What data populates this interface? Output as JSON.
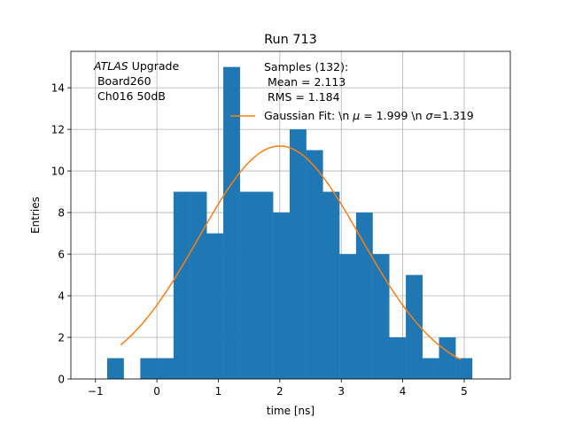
{
  "chart_data": {
    "type": "bar",
    "title": "Run 713",
    "xlabel": "time [ns]",
    "ylabel": "Entries",
    "xlim": [
      -1.4,
      5.75
    ],
    "ylim": [
      0,
      15.75
    ],
    "grid": true,
    "x_ticks": [
      -1,
      0,
      1,
      2,
      3,
      4,
      5
    ],
    "y_ticks": [
      0,
      2,
      4,
      6,
      8,
      10,
      12,
      14
    ],
    "colors": {
      "bars": "#1f77b4",
      "fit": "#ff7f0e",
      "grid": "#b0b0b0"
    },
    "bin_width": 0.2667,
    "bins": [
      {
        "x": -0.81,
        "y": 1
      },
      {
        "x": -0.27,
        "y": 1
      },
      {
        "x": 0.0,
        "y": 1
      },
      {
        "x": 0.27,
        "y": 9
      },
      {
        "x": 0.54,
        "y": 9
      },
      {
        "x": 0.81,
        "y": 7
      },
      {
        "x": 1.08,
        "y": 15
      },
      {
        "x": 1.35,
        "y": 9
      },
      {
        "x": 1.62,
        "y": 9
      },
      {
        "x": 1.89,
        "y": 8
      },
      {
        "x": 2.16,
        "y": 12
      },
      {
        "x": 2.43,
        "y": 11
      },
      {
        "x": 2.7,
        "y": 9
      },
      {
        "x": 2.97,
        "y": 6
      },
      {
        "x": 3.24,
        "y": 8
      },
      {
        "x": 3.51,
        "y": 6
      },
      {
        "x": 3.78,
        "y": 2
      },
      {
        "x": 4.05,
        "y": 5
      },
      {
        "x": 4.32,
        "y": 1
      },
      {
        "x": 4.59,
        "y": 2
      },
      {
        "x": 4.86,
        "y": 1
      }
    ],
    "fit": {
      "mean": 1.999,
      "sigma": 1.319,
      "amplitude": 11.2,
      "x_range": [
        -0.59,
        4.94
      ]
    },
    "annotation": {
      "italic": "ATLAS",
      "line1_rest": " Upgrade",
      "line2": " Board260",
      "line3": " Ch016 50dB"
    },
    "legend": {
      "position": "upper-right",
      "samples_line1": "Samples (132):",
      "samples_line2": " Mean = 2.113",
      "samples_line3": " RMS = 1.184",
      "fit_pre": "Gaussian Fit: \\n ",
      "fit_mu": "μ",
      "fit_mid": " = 1.999 \\n ",
      "fit_sigma": "σ",
      "fit_post": "=1.319"
    }
  }
}
